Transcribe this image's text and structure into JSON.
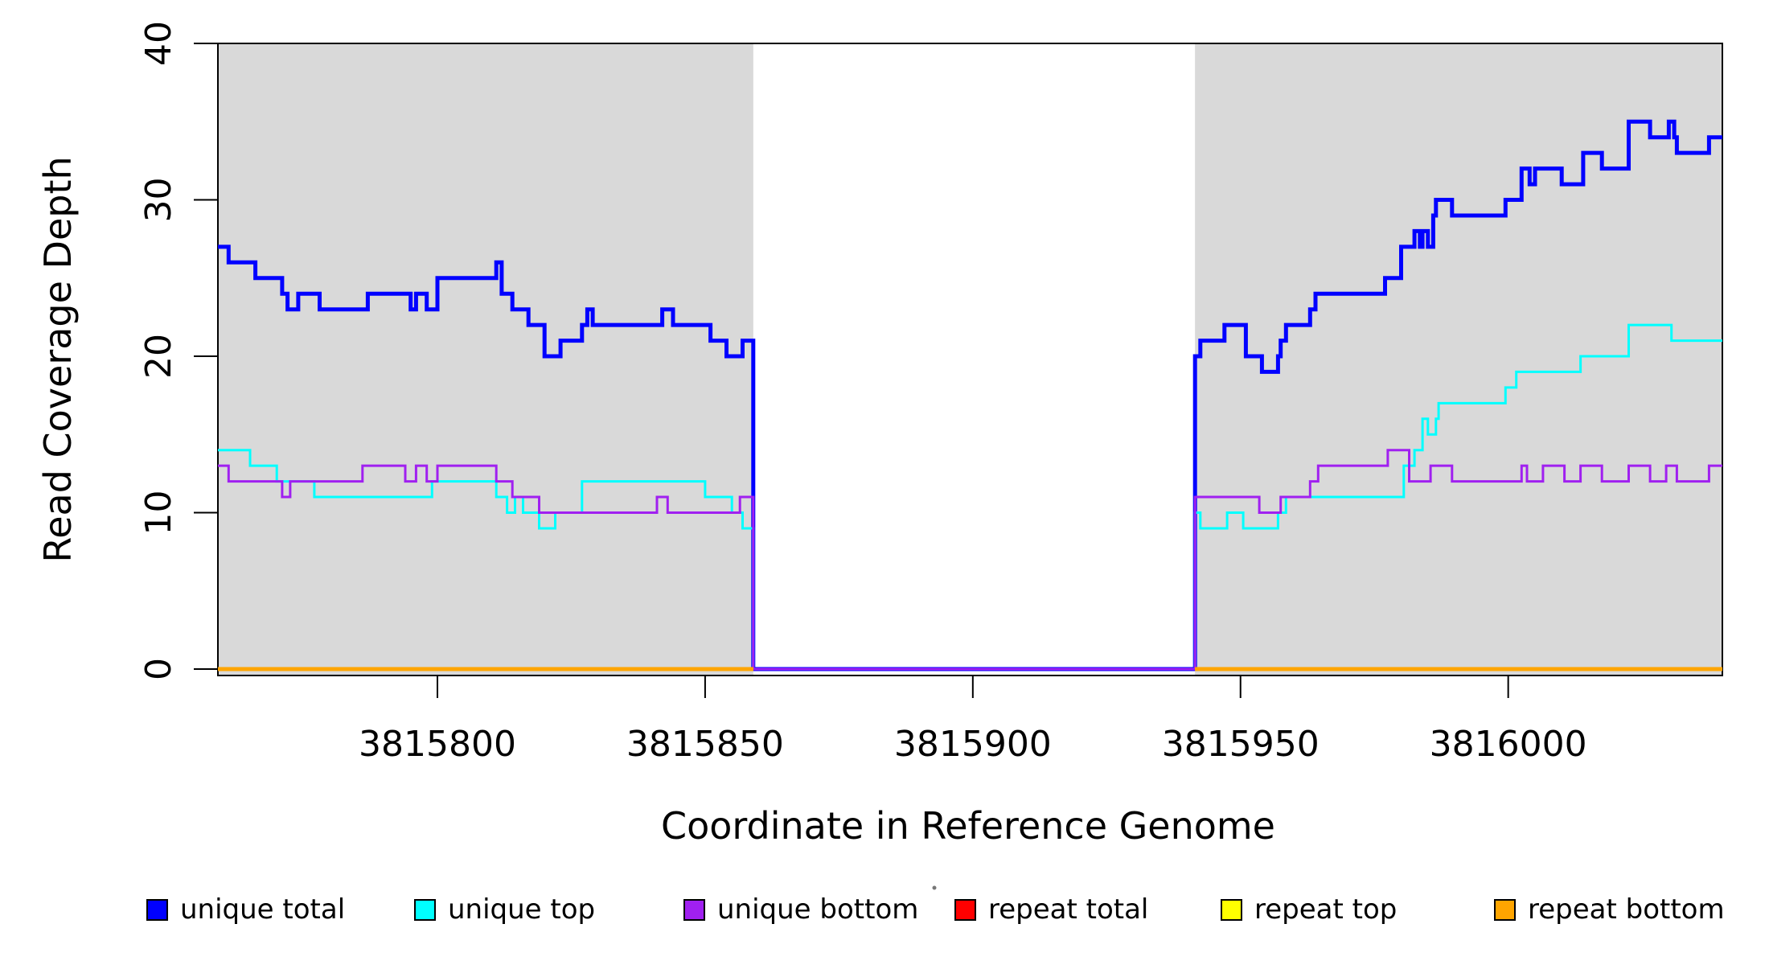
{
  "axes": {
    "y_label": "Read Coverage Depth",
    "x_label": "Coordinate in Reference Genome"
  },
  "legend": {
    "items": [
      {
        "label": "unique total",
        "color": "#0000FF"
      },
      {
        "label": "unique top",
        "color": "#00FFFF"
      },
      {
        "label": "unique bottom",
        "color": "#A020F0"
      },
      {
        "label": "repeat total",
        "color": "#FF0000"
      },
      {
        "label": "repeat top",
        "color": "#FFFF00"
      },
      {
        "label": "repeat bottom",
        "color": "#FFA500"
      }
    ]
  },
  "chart_data": {
    "type": "line",
    "subtype": "step",
    "title": "",
    "xlabel": "Coordinate in Reference Genome",
    "ylabel": "Read Coverage Depth",
    "x_domain": [
      3815759,
      3816040
    ],
    "y_domain": [
      0,
      40
    ],
    "x_ticks": [
      3815800,
      3815850,
      3815900,
      3815950,
      3816000
    ],
    "y_ticks": [
      0,
      10,
      20,
      30,
      40
    ],
    "grid": false,
    "legend_position": "bottom",
    "shaded_region_color": "#D9D9D9",
    "shaded_regions": [
      [
        3815759,
        3815859
      ],
      [
        3815941.5,
        3816040
      ]
    ],
    "gap_region": [
      3815859,
      3815941.5
    ],
    "series": [
      {
        "name": "unique total",
        "color": "#0000FF",
        "width": 5,
        "segments": [
          {
            "end": 3816040,
            "points": [
              [
                3815759,
                27
              ],
              [
                3815761,
                26
              ],
              [
                3815766,
                25
              ],
              [
                3815771,
                24
              ],
              [
                3815772,
                23
              ],
              [
                3815774,
                24
              ],
              [
                3815778,
                23
              ],
              [
                3815787,
                24
              ],
              [
                3815795,
                23
              ],
              [
                3815796,
                24
              ],
              [
                3815798,
                23
              ],
              [
                3815800,
                25
              ],
              [
                3815811,
                26
              ],
              [
                3815812,
                24
              ],
              [
                3815814,
                23
              ],
              [
                3815817,
                22
              ],
              [
                3815820,
                20
              ],
              [
                3815823,
                21
              ],
              [
                3815827,
                22
              ],
              [
                3815828,
                23
              ],
              [
                3815829,
                22
              ],
              [
                3815842,
                23
              ],
              [
                3815844,
                22
              ],
              [
                3815851,
                21
              ],
              [
                3815854,
                20
              ],
              [
                3815857,
                21
              ],
              [
                3815859,
                0
              ],
              [
                3815941.5,
                20
              ],
              [
                3815942.5,
                21
              ],
              [
                3815947,
                22
              ],
              [
                3815951,
                20
              ],
              [
                3815954,
                19
              ],
              [
                3815957,
                20
              ],
              [
                3815957.5,
                21
              ],
              [
                3815958.5,
                22
              ],
              [
                3815963,
                23
              ],
              [
                3815964,
                24
              ],
              [
                3815977,
                25
              ],
              [
                3815980,
                27
              ],
              [
                3815982.5,
                28
              ],
              [
                3815983.5,
                27
              ],
              [
                3815984,
                28
              ],
              [
                3815985,
                27
              ],
              [
                3815986,
                29
              ],
              [
                3815986.5,
                30
              ],
              [
                3815989.5,
                29
              ],
              [
                3815999.5,
                30
              ],
              [
                3816002.5,
                32
              ],
              [
                3816004,
                31
              ],
              [
                3816005,
                32
              ],
              [
                3816010,
                31
              ],
              [
                3816014,
                33
              ],
              [
                3816017.5,
                32
              ],
              [
                3816022.5,
                35
              ],
              [
                3816026.5,
                34
              ],
              [
                3816030,
                35
              ],
              [
                3816031,
                34
              ],
              [
                3816031.5,
                33
              ],
              [
                3816037.5,
                34
              ]
            ]
          }
        ]
      },
      {
        "name": "unique top",
        "color": "#00FFFF",
        "width": 3,
        "segments": [
          {
            "end": 3816040,
            "points": [
              [
                3815759,
                14
              ],
              [
                3815765,
                13
              ],
              [
                3815770,
                12
              ],
              [
                3815777,
                11
              ],
              [
                3815799,
                12
              ],
              [
                3815811,
                11
              ],
              [
                3815813,
                10
              ],
              [
                3815814.5,
                11
              ],
              [
                3815816,
                10
              ],
              [
                3815819,
                9
              ],
              [
                3815822,
                10
              ],
              [
                3815827,
                12
              ],
              [
                3815850,
                11
              ],
              [
                3815855,
                10
              ],
              [
                3815857,
                9
              ],
              [
                3815859,
                0
              ],
              [
                3815941.5,
                10
              ],
              [
                3815942.5,
                9
              ],
              [
                3815947.5,
                10
              ],
              [
                3815950.5,
                9
              ],
              [
                3815957,
                10
              ],
              [
                3815958.5,
                11
              ],
              [
                3815980.5,
                13
              ],
              [
                3815982.5,
                14
              ],
              [
                3815984,
                16
              ],
              [
                3815985,
                15
              ],
              [
                3815986.5,
                16
              ],
              [
                3815987,
                17
              ],
              [
                3815999.5,
                18
              ],
              [
                3816001.5,
                19
              ],
              [
                3816013.5,
                20
              ],
              [
                3816022.5,
                22
              ],
              [
                3816030.5,
                21
              ]
            ]
          }
        ]
      },
      {
        "name": "unique bottom",
        "color": "#A020F0",
        "width": 3,
        "segments": [
          {
            "end": 3816040,
            "points": [
              [
                3815759,
                13
              ],
              [
                3815761,
                12
              ],
              [
                3815771,
                11
              ],
              [
                3815772.5,
                12
              ],
              [
                3815786,
                13
              ],
              [
                3815794,
                12
              ],
              [
                3815796,
                13
              ],
              [
                3815798,
                12
              ],
              [
                3815800,
                13
              ],
              [
                3815811,
                12
              ],
              [
                3815814,
                11
              ],
              [
                3815819,
                10
              ],
              [
                3815841,
                11
              ],
              [
                3815843,
                10
              ],
              [
                3815856.5,
                11
              ],
              [
                3815859,
                0
              ],
              [
                3815941.5,
                11
              ],
              [
                3815953.5,
                10
              ],
              [
                3815957.5,
                11
              ],
              [
                3815963,
                12
              ],
              [
                3815964.5,
                13
              ],
              [
                3815977.5,
                14
              ],
              [
                3815981.5,
                12
              ],
              [
                3815985.5,
                13
              ],
              [
                3815989.5,
                12
              ],
              [
                3816002.5,
                13
              ],
              [
                3816003.5,
                12
              ],
              [
                3816006.5,
                13
              ],
              [
                3816010.5,
                12
              ],
              [
                3816013.5,
                13
              ],
              [
                3816017.5,
                12
              ],
              [
                3816022.5,
                13
              ],
              [
                3816026.5,
                12
              ],
              [
                3816029.5,
                13
              ],
              [
                3816031.5,
                12
              ],
              [
                3816037.5,
                13
              ]
            ]
          }
        ]
      },
      {
        "name": "repeat total",
        "color": "#FF0000",
        "width": 3,
        "segments": [
          {
            "end": 3815859,
            "points": [
              [
                3815759,
                0
              ]
            ]
          },
          {
            "end": 3816040,
            "points": [
              [
                3815941.5,
                0
              ]
            ]
          }
        ]
      },
      {
        "name": "repeat top",
        "color": "#FFFF00",
        "width": 3,
        "segments": [
          {
            "end": 3815859,
            "points": [
              [
                3815759,
                0
              ]
            ]
          },
          {
            "end": 3816040,
            "points": [
              [
                3815941.5,
                0
              ]
            ]
          }
        ]
      },
      {
        "name": "repeat bottom",
        "color": "#FFA500",
        "width": 5,
        "segments": [
          {
            "end": 3815859,
            "points": [
              [
                3815759,
                0
              ]
            ]
          },
          {
            "end": 3816040,
            "points": [
              [
                3815941.5,
                0
              ]
            ]
          }
        ]
      }
    ]
  }
}
